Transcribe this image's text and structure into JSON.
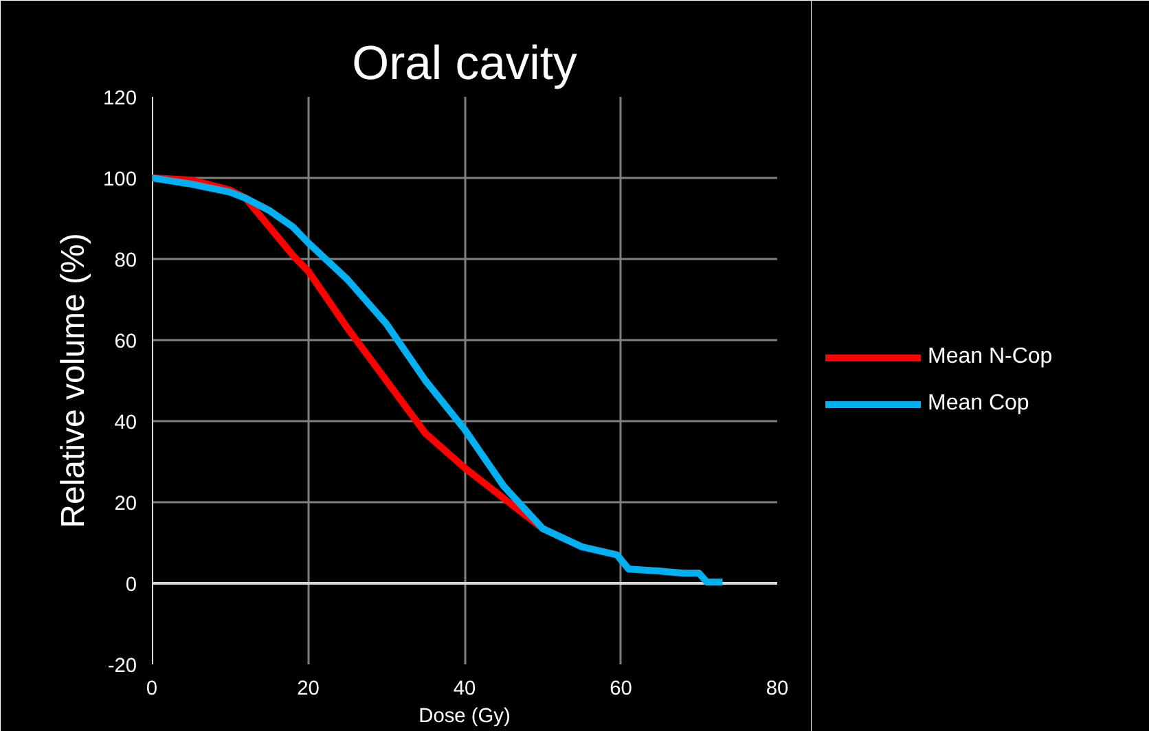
{
  "chart_data": {
    "type": "line",
    "title": "Oral cavity",
    "xlabel": "Dose (Gy)",
    "ylabel": "Relative volume (%)",
    "xlim": [
      0,
      80
    ],
    "xticks": [
      0,
      20,
      40,
      60,
      80
    ],
    "ylim": [
      -20,
      120
    ],
    "yticks": [
      -20,
      0,
      20,
      40,
      60,
      80,
      100,
      120
    ],
    "grid": true,
    "legend": "right",
    "line_style": "solid",
    "marker": "none",
    "series": [
      {
        "name": "Mean N-Cop",
        "color": "#ff0000",
        "x": [
          0,
          5,
          10,
          12,
          15,
          18,
          20,
          25,
          30,
          35,
          40,
          45,
          50
        ],
        "values": [
          100,
          99.5,
          97,
          95,
          88,
          81,
          77,
          63,
          50,
          37,
          28.5,
          21,
          13.5
        ]
      },
      {
        "name": "Mean Cop",
        "color": "#00b0f0",
        "x": [
          0,
          5,
          10,
          12,
          15,
          18,
          20,
          25,
          30,
          35,
          40,
          45,
          50,
          55,
          59.5,
          61,
          65,
          68,
          70,
          71,
          73
        ],
        "values": [
          100,
          98.5,
          96.5,
          95,
          92,
          88,
          84,
          75,
          64,
          50,
          38,
          24,
          13.5,
          9,
          7,
          3.5,
          3,
          2.5,
          2.5,
          0.3,
          0.3
        ]
      }
    ]
  }
}
